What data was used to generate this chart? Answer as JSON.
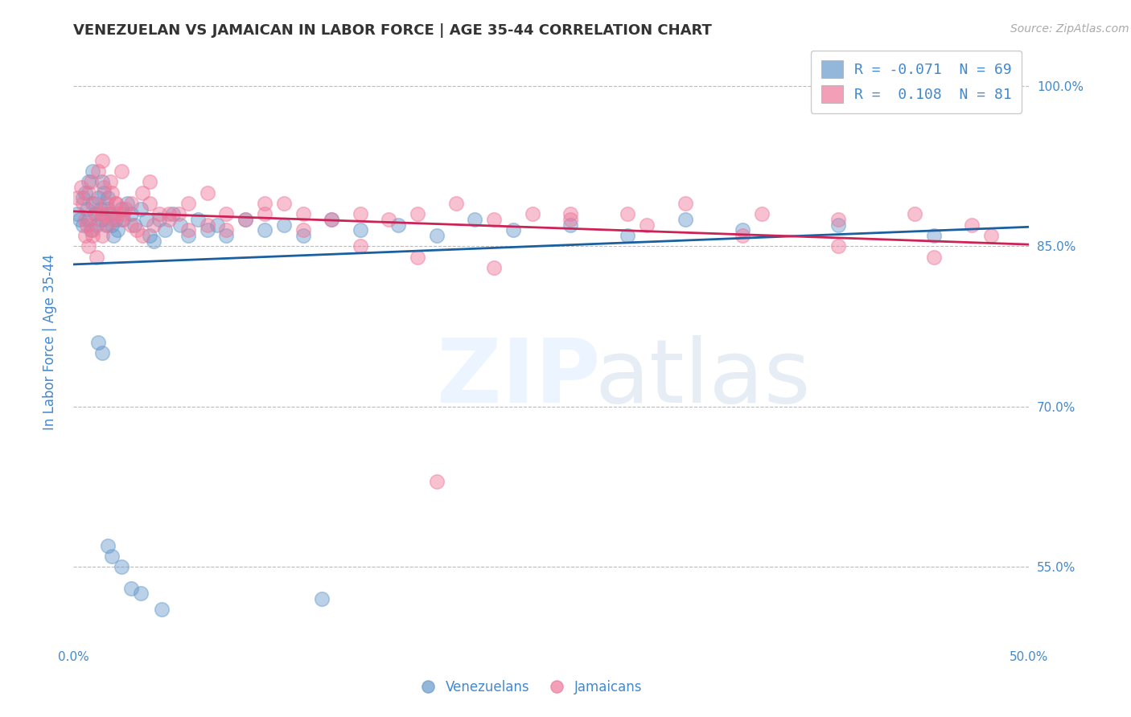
{
  "title": "VENEZUELAN VS JAMAICAN IN LABOR FORCE | AGE 35-44 CORRELATION CHART",
  "source": "Source: ZipAtlas.com",
  "ylabel": "In Labor Force | Age 35-44",
  "xmin": 0.0,
  "xmax": 0.5,
  "ymin": 0.48,
  "ymax": 1.04,
  "yticks": [
    0.55,
    0.7,
    0.85,
    1.0
  ],
  "ytick_labels": [
    "55.0%",
    "70.0%",
    "85.0%",
    "100.0%"
  ],
  "xtick_labels_show": [
    "0.0%",
    "50.0%"
  ],
  "xtick_positions_show": [
    0.0,
    0.5
  ],
  "legend_R_blue": "-0.071",
  "legend_N_blue": "69",
  "legend_R_pink": "0.108",
  "legend_N_pink": "81",
  "blue_color": "#6699cc",
  "pink_color": "#ee7799",
  "trend_blue": "#1a5fa0",
  "trend_pink": "#cc2255",
  "axis_color": "#4488cc",
  "venezuelan_x": [
    0.002,
    0.003,
    0.005,
    0.005,
    0.006,
    0.007,
    0.008,
    0.008,
    0.009,
    0.01,
    0.01,
    0.011,
    0.012,
    0.013,
    0.014,
    0.015,
    0.015,
    0.016,
    0.017,
    0.018,
    0.018,
    0.019,
    0.02,
    0.021,
    0.022,
    0.023,
    0.025,
    0.026,
    0.028,
    0.03,
    0.032,
    0.035,
    0.038,
    0.04,
    0.042,
    0.045,
    0.048,
    0.052,
    0.056,
    0.06,
    0.065,
    0.07,
    0.075,
    0.08,
    0.09,
    0.1,
    0.11,
    0.12,
    0.135,
    0.15,
    0.17,
    0.19,
    0.21,
    0.23,
    0.26,
    0.29,
    0.32,
    0.35,
    0.4,
    0.45,
    0.013,
    0.015,
    0.018,
    0.02,
    0.025,
    0.03,
    0.035,
    0.046,
    0.13
  ],
  "venezuelan_y": [
    0.88,
    0.875,
    0.87,
    0.895,
    0.9,
    0.885,
    0.875,
    0.91,
    0.865,
    0.89,
    0.92,
    0.88,
    0.87,
    0.895,
    0.885,
    0.875,
    0.91,
    0.9,
    0.87,
    0.885,
    0.895,
    0.88,
    0.87,
    0.86,
    0.875,
    0.865,
    0.885,
    0.875,
    0.89,
    0.88,
    0.87,
    0.885,
    0.875,
    0.86,
    0.855,
    0.875,
    0.865,
    0.88,
    0.87,
    0.86,
    0.875,
    0.865,
    0.87,
    0.86,
    0.875,
    0.865,
    0.87,
    0.86,
    0.875,
    0.865,
    0.87,
    0.86,
    0.875,
    0.865,
    0.87,
    0.86,
    0.875,
    0.865,
    0.87,
    0.86,
    0.76,
    0.75,
    0.57,
    0.56,
    0.55,
    0.53,
    0.525,
    0.51,
    0.52
  ],
  "jamaican_x": [
    0.002,
    0.004,
    0.005,
    0.006,
    0.007,
    0.008,
    0.009,
    0.01,
    0.011,
    0.012,
    0.013,
    0.014,
    0.015,
    0.016,
    0.017,
    0.018,
    0.019,
    0.02,
    0.021,
    0.022,
    0.023,
    0.025,
    0.027,
    0.03,
    0.033,
    0.036,
    0.04,
    0.045,
    0.05,
    0.055,
    0.06,
    0.07,
    0.08,
    0.09,
    0.1,
    0.11,
    0.12,
    0.135,
    0.15,
    0.165,
    0.18,
    0.2,
    0.22,
    0.24,
    0.26,
    0.29,
    0.32,
    0.36,
    0.4,
    0.44,
    0.006,
    0.008,
    0.01,
    0.012,
    0.015,
    0.018,
    0.022,
    0.026,
    0.03,
    0.036,
    0.042,
    0.05,
    0.06,
    0.07,
    0.08,
    0.1,
    0.12,
    0.15,
    0.18,
    0.22,
    0.26,
    0.3,
    0.35,
    0.4,
    0.45,
    0.48,
    0.015,
    0.025,
    0.04,
    0.47,
    0.19
  ],
  "jamaican_y": [
    0.895,
    0.905,
    0.89,
    0.875,
    0.87,
    0.9,
    0.91,
    0.86,
    0.89,
    0.88,
    0.92,
    0.875,
    0.86,
    0.905,
    0.89,
    0.88,
    0.91,
    0.9,
    0.875,
    0.89,
    0.88,
    0.875,
    0.885,
    0.89,
    0.865,
    0.9,
    0.89,
    0.88,
    0.875,
    0.88,
    0.89,
    0.9,
    0.865,
    0.875,
    0.88,
    0.89,
    0.88,
    0.875,
    0.88,
    0.875,
    0.88,
    0.89,
    0.875,
    0.88,
    0.875,
    0.88,
    0.89,
    0.88,
    0.875,
    0.88,
    0.86,
    0.85,
    0.865,
    0.84,
    0.88,
    0.87,
    0.89,
    0.88,
    0.87,
    0.86,
    0.87,
    0.88,
    0.865,
    0.87,
    0.88,
    0.89,
    0.865,
    0.85,
    0.84,
    0.83,
    0.88,
    0.87,
    0.86,
    0.85,
    0.84,
    0.86,
    0.93,
    0.92,
    0.91,
    0.87,
    0.63
  ]
}
